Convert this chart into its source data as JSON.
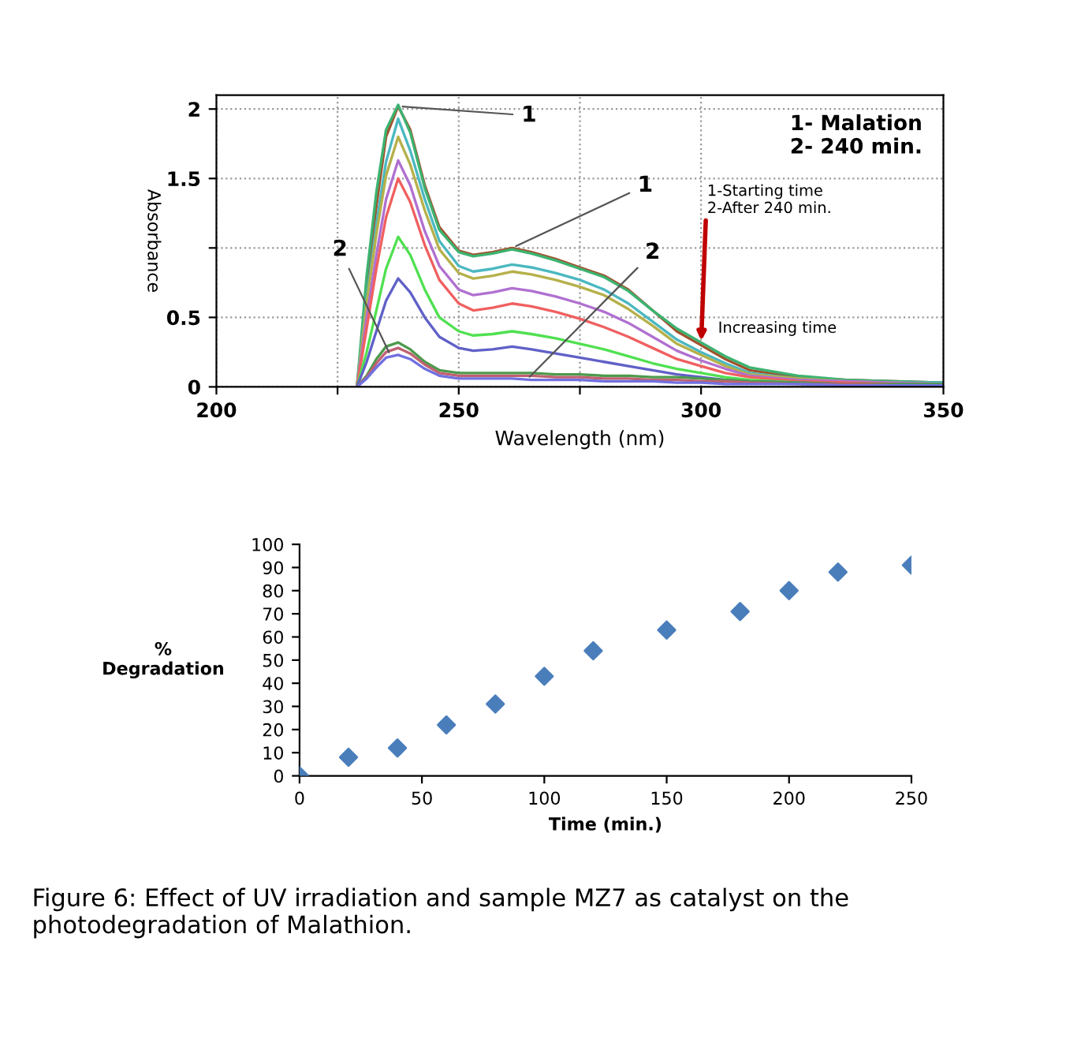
{
  "chart_data": [
    {
      "type": "line",
      "xlabel": "Wavelength (nm)",
      "ylabel": "Absorbance",
      "x": [
        229,
        231,
        233,
        235,
        237.5,
        240,
        243,
        246,
        250,
        253,
        257,
        261,
        265,
        270,
        275,
        280,
        285,
        290,
        295,
        300,
        305,
        310,
        320,
        330,
        340,
        350
      ],
      "series": [
        {
          "color": "#a0522d",
          "values": [
            0,
            0.7,
            1.3,
            1.8,
            2.02,
            1.85,
            1.45,
            1.15,
            0.98,
            0.95,
            0.97,
            1.0,
            0.97,
            0.92,
            0.86,
            0.8,
            0.7,
            0.55,
            0.4,
            0.3,
            0.2,
            0.12,
            0.07,
            0.05,
            0.04,
            0.03
          ]
        },
        {
          "color": "#3cb371",
          "values": [
            0,
            0.8,
            1.4,
            1.85,
            2.03,
            1.83,
            1.43,
            1.13,
            0.97,
            0.94,
            0.96,
            0.99,
            0.96,
            0.91,
            0.85,
            0.79,
            0.69,
            0.55,
            0.42,
            0.32,
            0.22,
            0.14,
            0.08,
            0.05,
            0.04,
            0.03
          ]
        },
        {
          "color": "#4bb8c0",
          "values": [
            0,
            0.63,
            1.17,
            1.62,
            1.93,
            1.7,
            1.35,
            1.05,
            0.87,
            0.83,
            0.85,
            0.88,
            0.86,
            0.82,
            0.77,
            0.7,
            0.6,
            0.47,
            0.34,
            0.25,
            0.17,
            0.1,
            0.06,
            0.04,
            0.03,
            0.03
          ]
        },
        {
          "color": "#b5b04a",
          "values": [
            0,
            0.6,
            1.1,
            1.52,
            1.8,
            1.6,
            1.27,
            0.99,
            0.82,
            0.78,
            0.8,
            0.83,
            0.81,
            0.77,
            0.72,
            0.66,
            0.56,
            0.44,
            0.31,
            0.23,
            0.15,
            0.09,
            0.06,
            0.04,
            0.03,
            0.02
          ]
        },
        {
          "color": "#b070d0",
          "values": [
            0,
            0.5,
            0.95,
            1.35,
            1.63,
            1.45,
            1.12,
            0.87,
            0.7,
            0.66,
            0.68,
            0.71,
            0.69,
            0.65,
            0.6,
            0.54,
            0.46,
            0.36,
            0.26,
            0.19,
            0.13,
            0.08,
            0.05,
            0.04,
            0.03,
            0.02
          ]
        },
        {
          "color": "#f06060",
          "values": [
            0,
            0.42,
            0.85,
            1.22,
            1.5,
            1.33,
            1.02,
            0.77,
            0.6,
            0.55,
            0.57,
            0.6,
            0.58,
            0.54,
            0.49,
            0.43,
            0.36,
            0.28,
            0.2,
            0.15,
            0.1,
            0.07,
            0.04,
            0.03,
            0.02,
            null
          ]
        },
        {
          "color": "#50e050",
          "values": [
            0,
            0.25,
            0.55,
            0.85,
            1.08,
            0.95,
            0.7,
            0.5,
            0.4,
            0.37,
            0.38,
            0.4,
            0.38,
            0.35,
            0.31,
            0.27,
            0.22,
            0.17,
            0.13,
            0.1,
            0.07,
            0.05,
            0.03,
            null,
            null,
            null
          ]
        },
        {
          "color": "#6060c8",
          "values": [
            0,
            0.18,
            0.4,
            0.62,
            0.78,
            0.68,
            0.5,
            0.36,
            0.28,
            0.26,
            0.27,
            0.29,
            0.27,
            0.24,
            0.21,
            0.18,
            0.15,
            0.12,
            0.09,
            0.07,
            0.05,
            0.04,
            0.03,
            0.02,
            0.01,
            0.01
          ]
        },
        {
          "color": "#4c9a4c",
          "values": [
            0,
            0.08,
            0.2,
            0.29,
            0.32,
            0.27,
            0.18,
            0.12,
            0.1,
            0.1,
            0.1,
            0.1,
            0.1,
            0.09,
            0.09,
            0.08,
            0.08,
            0.07,
            0.07,
            0.06,
            0.05,
            0.04,
            0.03,
            0.02,
            0.02,
            0.02
          ]
        },
        {
          "color": "#c06070",
          "values": [
            0,
            0.07,
            0.17,
            0.25,
            0.28,
            0.24,
            0.16,
            0.1,
            0.08,
            0.08,
            0.08,
            0.08,
            0.08,
            0.07,
            0.07,
            0.06,
            0.06,
            0.05,
            0.05,
            0.04,
            0.04,
            0.03,
            0.02,
            0.02,
            0.01,
            0.01
          ]
        },
        {
          "color": "#7070e0",
          "values": [
            0,
            0.06,
            0.14,
            0.21,
            0.23,
            0.2,
            0.13,
            0.08,
            0.06,
            0.06,
            0.06,
            0.06,
            0.05,
            0.05,
            0.05,
            0.04,
            0.04,
            0.04,
            0.03,
            0.03,
            0.02,
            0.02,
            0.02,
            0.01,
            0.01,
            0.01
          ]
        }
      ],
      "xlim": [
        200,
        350
      ],
      "xticks": [
        200,
        {
          "value": 225,
          "label": null
        },
        250,
        {
          "value": 275,
          "label": null
        },
        300,
        350
      ],
      "ylim": [
        0,
        2.1
      ],
      "yticks": [
        0,
        0.5,
        {
          "value": 1,
          "label": null
        },
        1.5,
        2
      ],
      "grid": true,
      "marker": "none",
      "line_style": "solid",
      "legend": false,
      "annotations": [
        {
          "text": "1",
          "x": 237.5,
          "y": 2.02
        },
        {
          "text": "1",
          "x": 261,
          "y": 1.0
        },
        {
          "text": "2",
          "x": 236,
          "y": 0.22
        },
        {
          "text": "2",
          "x": 264,
          "y": 0.05
        },
        "1- Malation\n2- 240 min.",
        {
          "text": "1-Starting time\n2-After 240 min.",
          "x": 300,
          "y": 0.3
        },
        "Increasing time"
      ]
    },
    {
      "type": "scatter",
      "xlabel": "Time (min.)",
      "ylabel": "%\nDegradation",
      "x": [
        0,
        20,
        40,
        60,
        80,
        100,
        120,
        150,
        180,
        200,
        220,
        250
      ],
      "series": [
        {
          "color": "#4a7ebb",
          "values": [
            0,
            8,
            12,
            22,
            31,
            43,
            54,
            63,
            71,
            80,
            88,
            91
          ]
        }
      ],
      "xlim": [
        0,
        250
      ],
      "xticks": [
        0,
        50,
        100,
        150,
        200,
        250
      ],
      "ylim": [
        0,
        100
      ],
      "yticks": [
        0,
        10,
        20,
        30,
        40,
        50,
        60,
        70,
        80,
        90,
        100
      ],
      "grid": false,
      "marker": "diamond",
      "legend": false,
      "annotations": [
        "Figure 6: Effect of UV irradiation and sample MZ7 as catalyst on the photodegradation of Malathion."
      ]
    }
  ]
}
